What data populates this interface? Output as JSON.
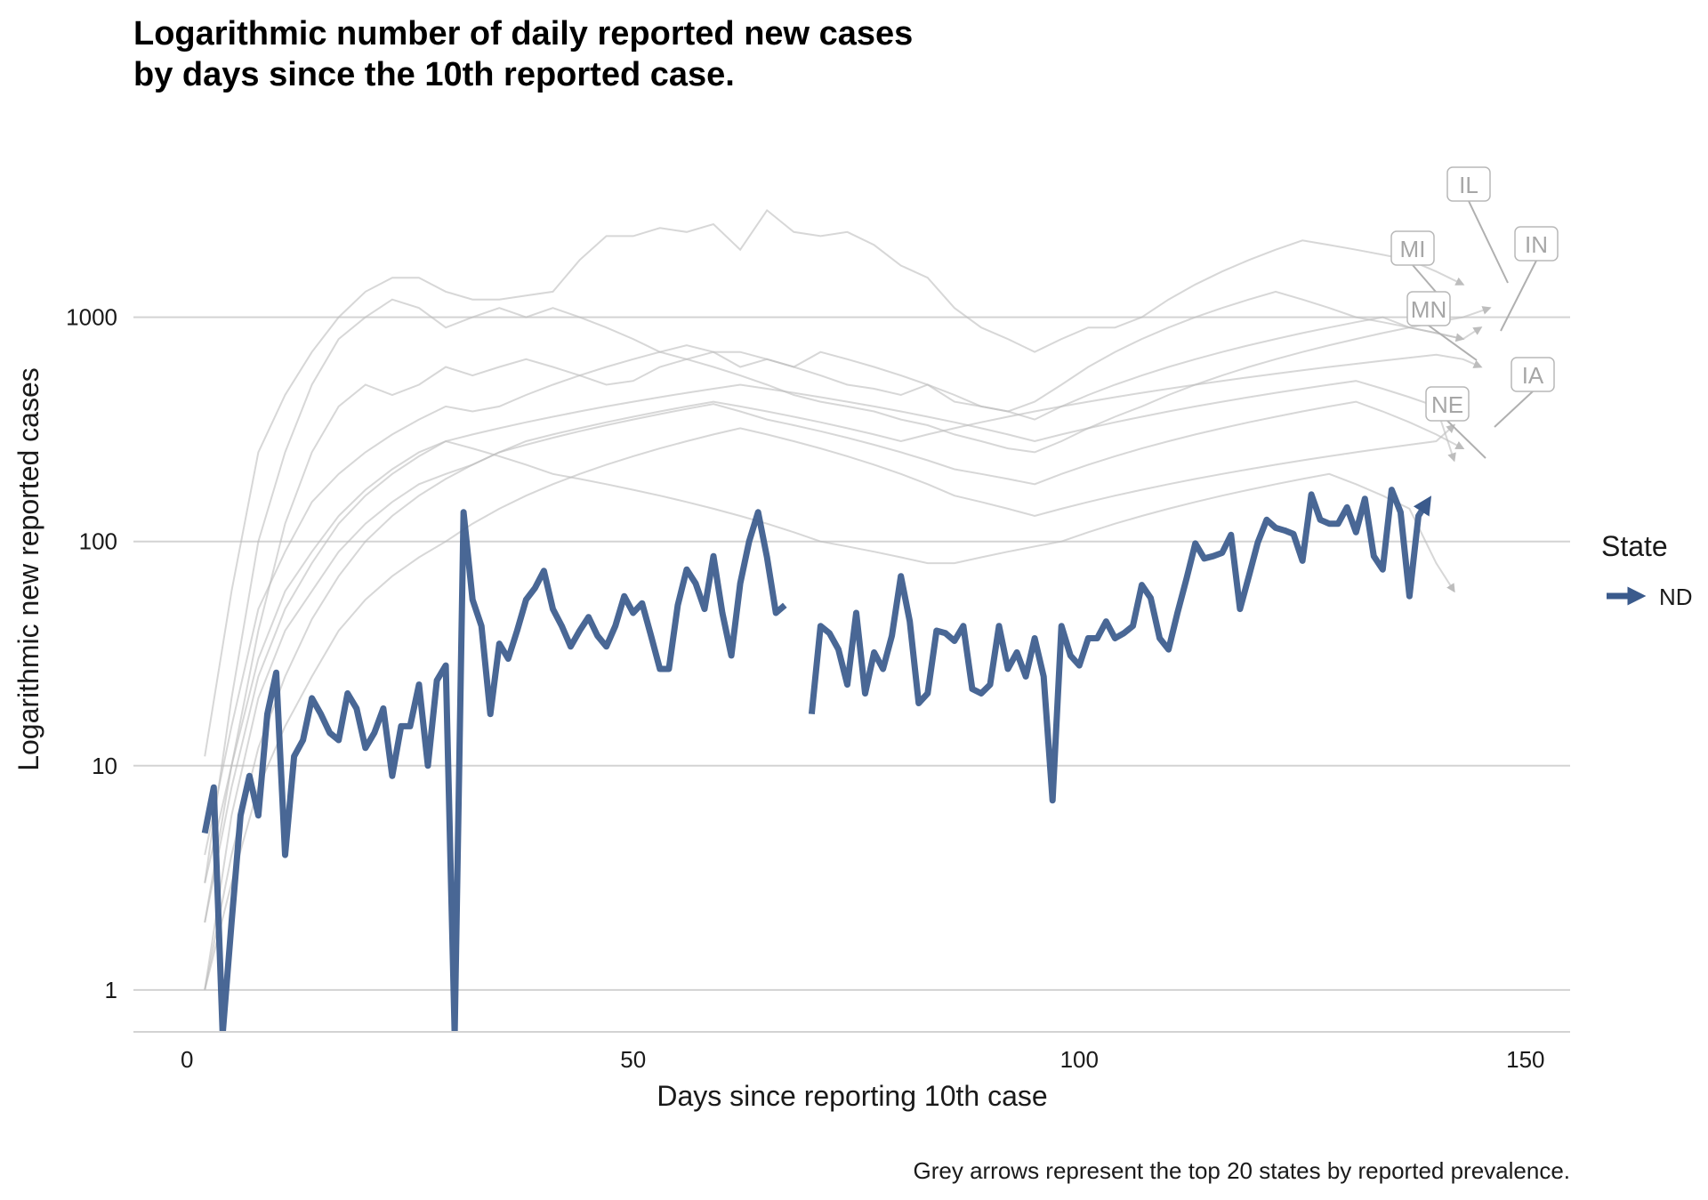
{
  "chart_data": {
    "type": "line",
    "title_lines": [
      "Logarithmic number of daily reported new cases",
      "by days since the 10th reported case."
    ],
    "xlabel": "Days since reporting 10th case",
    "ylabel": "Logarithmic new reported cases",
    "caption": "Grey arrows represent the top 20 states by reported prevalence.",
    "x_scale": "linear",
    "y_scale": "log10",
    "xlim": [
      -6,
      155
    ],
    "ylim": [
      0.65,
      5500
    ],
    "x_ticks": [
      0,
      50,
      100,
      150
    ],
    "x_tick_labels": [
      "0",
      "50",
      "100",
      "150"
    ],
    "y_ticks": [
      1,
      10,
      100,
      1000
    ],
    "y_tick_labels": [
      "1",
      "10",
      "100",
      "1000"
    ],
    "grid": "horizontal major",
    "legend": {
      "title": "State",
      "placement": "right",
      "entries": [
        {
          "label": "ND",
          "color": "#3A5A8C"
        }
      ]
    },
    "highlight_series": {
      "name": "ND",
      "color": "#3A5A8C",
      "x": [
        2,
        3,
        4,
        5,
        6,
        7,
        8,
        9,
        10,
        11,
        12,
        13,
        14,
        15,
        16,
        17,
        18,
        19,
        20,
        21,
        22,
        23,
        24,
        25,
        26,
        27,
        28,
        29,
        30,
        31,
        32,
        33,
        34,
        35,
        36,
        37,
        38,
        39,
        40,
        41,
        42,
        43,
        44,
        45,
        46,
        47,
        48,
        49,
        50,
        51,
        52,
        53,
        54,
        55,
        56,
        57,
        58,
        59,
        60,
        61,
        62,
        63,
        64,
        65,
        66,
        67,
        68,
        69,
        70,
        71,
        72,
        73,
        74,
        75,
        76,
        77,
        78,
        79,
        80,
        81,
        82,
        83,
        84,
        85,
        86,
        87,
        88,
        89,
        90,
        91,
        92,
        93,
        94,
        95,
        96,
        97,
        98,
        99,
        100,
        101,
        102,
        103,
        104,
        105,
        106,
        107,
        108,
        109,
        110,
        111,
        112,
        113,
        114,
        115,
        116,
        117,
        118,
        119,
        120,
        121,
        122,
        123,
        124,
        125,
        126,
        127,
        128,
        129,
        130,
        131,
        132,
        133,
        134,
        135,
        136,
        137,
        138,
        139
      ],
      "y": [
        5,
        8,
        0.6,
        2,
        6,
        9,
        6,
        17,
        26,
        4,
        11,
        13,
        20,
        17,
        14,
        13,
        21,
        18,
        12,
        14,
        18,
        9,
        15,
        15,
        23,
        10,
        24,
        28,
        0.6,
        135,
        55,
        42,
        17,
        35,
        30,
        40,
        55,
        62,
        74,
        50,
        42,
        34,
        40,
        46,
        38,
        34,
        42,
        57,
        48,
        53,
        38,
        27,
        27,
        52,
        75,
        65,
        50,
        86,
        48,
        31,
        65,
        100,
        135,
        85,
        48,
        52,
        null,
        null,
        17,
        42,
        39,
        33,
        23,
        48,
        21,
        32,
        27,
        38,
        70,
        44,
        19,
        21,
        40,
        39,
        36,
        42,
        22,
        21,
        23,
        42,
        27,
        32,
        25,
        37,
        25,
        7,
        42,
        31,
        28,
        37,
        37,
        44,
        37,
        39,
        42,
        64,
        56,
        37,
        33,
        48,
        68,
        98,
        84,
        86,
        89,
        107,
        50,
        70,
        99,
        125,
        115,
        112,
        108,
        82,
        162,
        125,
        120,
        120,
        142,
        110,
        155,
        86,
        75,
        170,
        135,
        57,
        130,
        150
      ]
    },
    "background_series_color": "#BDBDBD",
    "background_series": [
      {
        "x": [
          2,
          5,
          8,
          11,
          14,
          17,
          20,
          23,
          26,
          29,
          32,
          35,
          38,
          41,
          44,
          47,
          50,
          53,
          56,
          59,
          62,
          65,
          68,
          71,
          74,
          77,
          80,
          83,
          86,
          89,
          92,
          95,
          98,
          101,
          104,
          107,
          110,
          113,
          116,
          119,
          122,
          125,
          128,
          131,
          134,
          137,
          140,
          143
        ],
        "y": [
          11,
          60,
          250,
          450,
          700,
          1000,
          1300,
          1500,
          1500,
          1300,
          1200,
          1200,
          1250,
          1300,
          1800,
          2300,
          2300,
          2500,
          2400,
          2600,
          2000,
          3000,
          2400,
          2300,
          2400,
          2100,
          1700,
          1500,
          1100,
          900,
          800,
          700,
          800,
          900,
          900,
          1000,
          1200,
          1400,
          1600,
          1800,
          2000,
          2200,
          2100,
          2000,
          1900,
          1800,
          1600,
          1400
        ]
      },
      {
        "x": [
          2,
          5,
          8,
          11,
          14,
          17,
          20,
          23,
          26,
          29,
          32,
          35,
          38,
          41,
          44,
          47,
          50,
          53,
          56,
          59,
          62,
          65,
          68,
          71,
          74,
          77,
          80,
          83,
          86,
          89,
          92,
          95,
          98,
          101,
          104,
          107,
          110,
          113,
          116,
          119,
          122,
          125,
          128,
          131,
          134,
          137,
          140,
          143
        ],
        "y": [
          3,
          20,
          100,
          250,
          500,
          800,
          1000,
          1200,
          1100,
          900,
          1000,
          1100,
          1000,
          1100,
          1000,
          900,
          800,
          700,
          750,
          700,
          600,
          650,
          600,
          700,
          650,
          600,
          550,
          500,
          450,
          400,
          380,
          420,
          500,
          600,
          700,
          800,
          900,
          1000,
          1100,
          1200,
          1300,
          1200,
          1100,
          1000,
          950,
          900,
          850,
          800
        ]
      },
      {
        "x": [
          2,
          5,
          8,
          11,
          14,
          17,
          20,
          23,
          26,
          29,
          32,
          35,
          38,
          41,
          44,
          47,
          50,
          53,
          56,
          59,
          62,
          65,
          68,
          71,
          74,
          77,
          80,
          83,
          86,
          89,
          92,
          95,
          98,
          101,
          104,
          107,
          110,
          113,
          116,
          119,
          122,
          125,
          128,
          131,
          134,
          137,
          140,
          143,
          145
        ],
        "y": [
          2,
          10,
          40,
          120,
          250,
          400,
          500,
          450,
          500,
          600,
          550,
          600,
          650,
          600,
          550,
          500,
          520,
          600,
          650,
          700,
          700,
          650,
          600,
          550,
          500,
          480,
          450,
          500,
          420,
          400,
          380,
          350,
          400,
          450,
          500,
          550,
          600,
          650,
          700,
          750,
          800,
          850,
          900,
          950,
          1000,
          900,
          850,
          800,
          900
        ]
      },
      {
        "x": [
          2,
          5,
          8,
          11,
          14,
          17,
          20,
          23,
          26,
          29,
          32,
          35,
          38,
          41,
          44,
          47,
          50,
          53,
          56,
          59,
          62,
          65,
          68,
          71,
          74,
          77,
          80,
          83,
          86,
          89,
          92,
          95,
          98,
          101,
          104,
          107,
          110,
          113,
          116,
          119,
          122,
          125,
          128,
          131,
          134,
          137,
          140,
          143,
          146
        ],
        "y": [
          4,
          15,
          50,
          90,
          150,
          200,
          250,
          300,
          350,
          400,
          380,
          400,
          450,
          500,
          550,
          600,
          650,
          700,
          650,
          600,
          550,
          500,
          450,
          420,
          400,
          380,
          350,
          330,
          300,
          280,
          260,
          250,
          280,
          320,
          360,
          400,
          450,
          500,
          550,
          600,
          650,
          700,
          750,
          800,
          850,
          900,
          950,
          1000,
          1100
        ]
      },
      {
        "x": [
          2,
          5,
          8,
          11,
          14,
          17,
          20,
          23,
          26,
          29,
          32,
          35,
          38,
          41,
          44,
          47,
          50,
          53,
          56,
          59,
          62,
          65,
          68,
          71,
          74,
          77,
          80,
          83,
          86,
          89,
          92,
          95,
          98,
          101,
          104,
          107,
          110,
          113,
          116,
          119,
          122,
          125,
          128,
          131,
          134,
          137,
          140,
          143,
          145
        ],
        "y": [
          1,
          6,
          20,
          40,
          60,
          90,
          120,
          150,
          180,
          200,
          220,
          250,
          280,
          300,
          320,
          340,
          360,
          380,
          400,
          420,
          400,
          380,
          360,
          340,
          320,
          300,
          280,
          300,
          320,
          340,
          360,
          380,
          400,
          420,
          440,
          460,
          480,
          500,
          520,
          540,
          560,
          580,
          600,
          620,
          640,
          660,
          680,
          650,
          600
        ]
      },
      {
        "x": [
          2,
          5,
          8,
          11,
          14,
          17,
          20,
          23,
          26,
          29,
          32,
          35,
          38,
          41,
          44,
          47,
          50,
          53,
          56,
          59,
          62,
          65,
          68,
          71,
          74,
          77,
          80,
          83,
          86,
          89,
          92,
          95,
          98,
          101,
          104,
          107,
          110,
          113,
          116,
          119,
          122,
          125,
          128,
          131,
          134,
          137,
          140,
          142
        ],
        "y": [
          2,
          8,
          25,
          50,
          80,
          120,
          160,
          200,
          240,
          280,
          300,
          320,
          340,
          360,
          380,
          400,
          420,
          440,
          460,
          480,
          500,
          480,
          460,
          440,
          420,
          400,
          380,
          360,
          340,
          320,
          300,
          280,
          300,
          320,
          340,
          360,
          380,
          400,
          420,
          440,
          460,
          480,
          500,
          520,
          480,
          440,
          400,
          230
        ]
      },
      {
        "x": [
          2,
          5,
          8,
          11,
          14,
          17,
          20,
          23,
          26,
          29,
          32,
          35,
          38,
          41,
          44,
          47,
          50,
          53,
          56,
          59,
          62,
          65,
          68,
          71,
          74,
          77,
          80,
          83,
          86,
          89,
          92,
          95,
          98,
          101,
          104,
          107,
          110,
          113,
          116,
          119,
          122,
          125,
          128,
          131,
          134,
          137,
          140,
          143
        ],
        "y": [
          1,
          4,
          12,
          25,
          45,
          70,
          100,
          130,
          160,
          190,
          220,
          250,
          270,
          290,
          310,
          330,
          350,
          370,
          390,
          410,
          380,
          350,
          330,
          310,
          290,
          270,
          250,
          230,
          210,
          200,
          190,
          180,
          200,
          220,
          240,
          260,
          280,
          300,
          320,
          340,
          360,
          380,
          400,
          420,
          380,
          340,
          300,
          260
        ]
      },
      {
        "x": [
          2,
          5,
          8,
          11,
          14,
          17,
          20,
          23,
          26,
          29,
          32,
          35,
          38,
          41,
          44,
          47,
          50,
          53,
          56,
          59,
          62,
          65,
          68,
          71,
          74,
          77,
          80,
          83,
          86,
          89,
          92,
          95,
          98,
          101,
          104,
          107,
          110,
          113,
          116,
          119,
          122,
          125,
          128,
          131,
          134,
          137,
          140,
          142
        ],
        "y": [
          3,
          10,
          30,
          60,
          90,
          130,
          170,
          210,
          250,
          280,
          260,
          240,
          220,
          200,
          190,
          180,
          170,
          160,
          150,
          140,
          130,
          120,
          110,
          100,
          95,
          90,
          85,
          80,
          80,
          85,
          90,
          95,
          100,
          110,
          120,
          130,
          140,
          150,
          160,
          170,
          180,
          190,
          200,
          180,
          160,
          140,
          80,
          60
        ]
      },
      {
        "x": [
          2,
          5,
          8,
          11,
          14,
          17,
          20,
          23,
          26,
          29,
          32,
          35,
          38,
          41,
          44,
          47,
          50,
          53,
          56,
          59,
          62,
          65,
          68,
          71,
          74,
          77,
          80,
          83,
          86,
          89,
          92,
          95,
          98,
          101,
          104,
          107,
          110,
          113,
          116,
          119,
          122,
          125,
          128,
          131,
          134,
          137,
          140,
          142
        ],
        "y": [
          1,
          3,
          8,
          15,
          25,
          40,
          55,
          70,
          85,
          100,
          120,
          140,
          160,
          180,
          200,
          220,
          240,
          260,
          280,
          300,
          320,
          300,
          280,
          260,
          240,
          220,
          200,
          180,
          160,
          150,
          140,
          130,
          140,
          150,
          160,
          170,
          180,
          190,
          200,
          210,
          220,
          230,
          240,
          250,
          260,
          270,
          280,
          330
        ]
      }
    ],
    "annotations": [
      "IL",
      "MI",
      "IN",
      "MN",
      "IA",
      "NE"
    ]
  }
}
